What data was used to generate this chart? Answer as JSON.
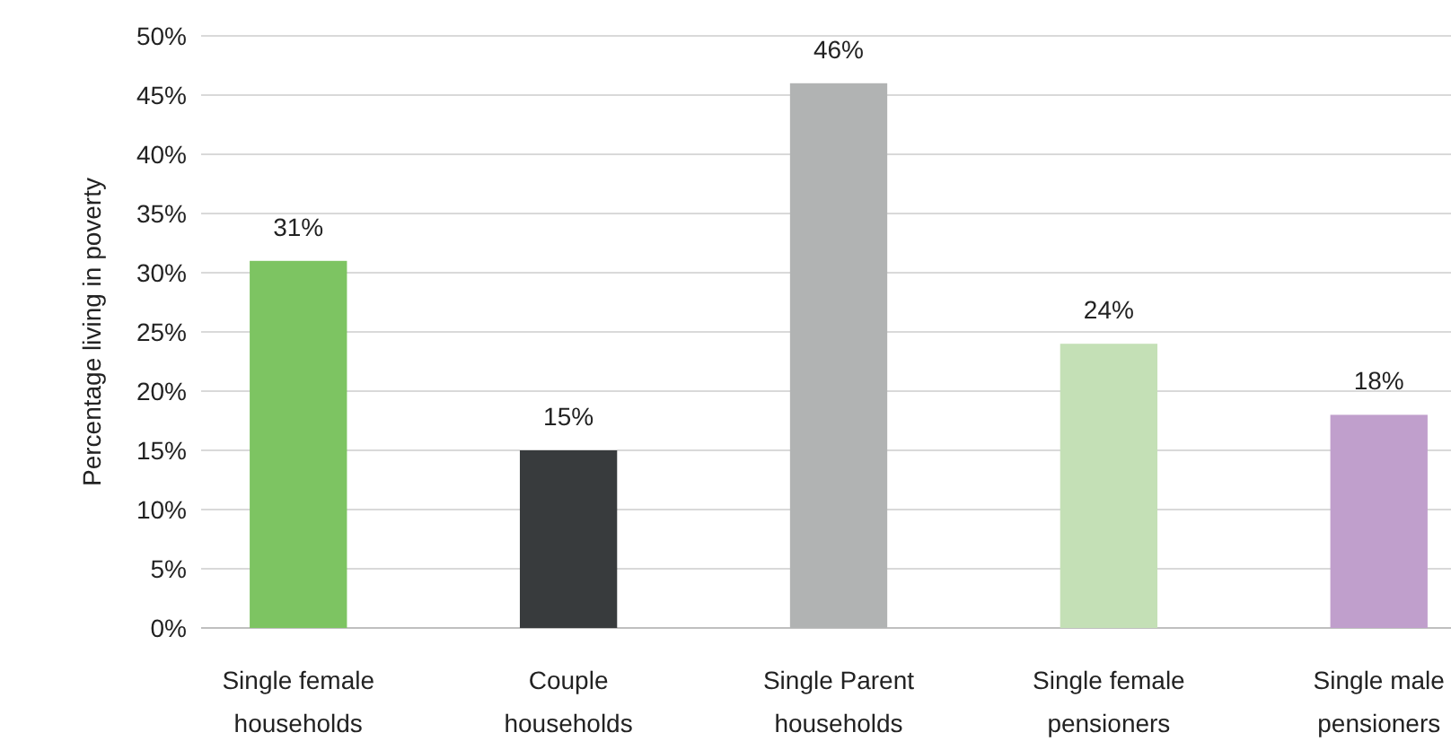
{
  "chart_data": {
    "type": "bar",
    "ylabel": "Percentage living in poverty",
    "categories": [
      "Single female households",
      "Couple households",
      "Single Parent households",
      "Single female pensioners",
      "Single male pensioners"
    ],
    "values": [
      31,
      15,
      46,
      24,
      18
    ],
    "colors": [
      "#7dc462",
      "#383b3d",
      "#b1b3b3",
      "#c4e0b6",
      "#c09fcc"
    ],
    "value_labels": [
      "31%",
      "15%",
      "46%",
      "24%",
      "18%"
    ],
    "ylim": [
      0,
      50
    ],
    "yticks": [
      {
        "value": 0,
        "label": "0%"
      },
      {
        "value": 5,
        "label": "5%"
      },
      {
        "value": 10,
        "label": "10%"
      },
      {
        "value": 15,
        "label": "15%"
      },
      {
        "value": 20,
        "label": "20%"
      },
      {
        "value": 25,
        "label": "25%"
      },
      {
        "value": 30,
        "label": "30%"
      },
      {
        "value": 35,
        "label": "35%"
      },
      {
        "value": 40,
        "label": "40%"
      },
      {
        "value": 45,
        "label": "45%"
      },
      {
        "value": 50,
        "label": "50%"
      }
    ],
    "grid": "y"
  }
}
